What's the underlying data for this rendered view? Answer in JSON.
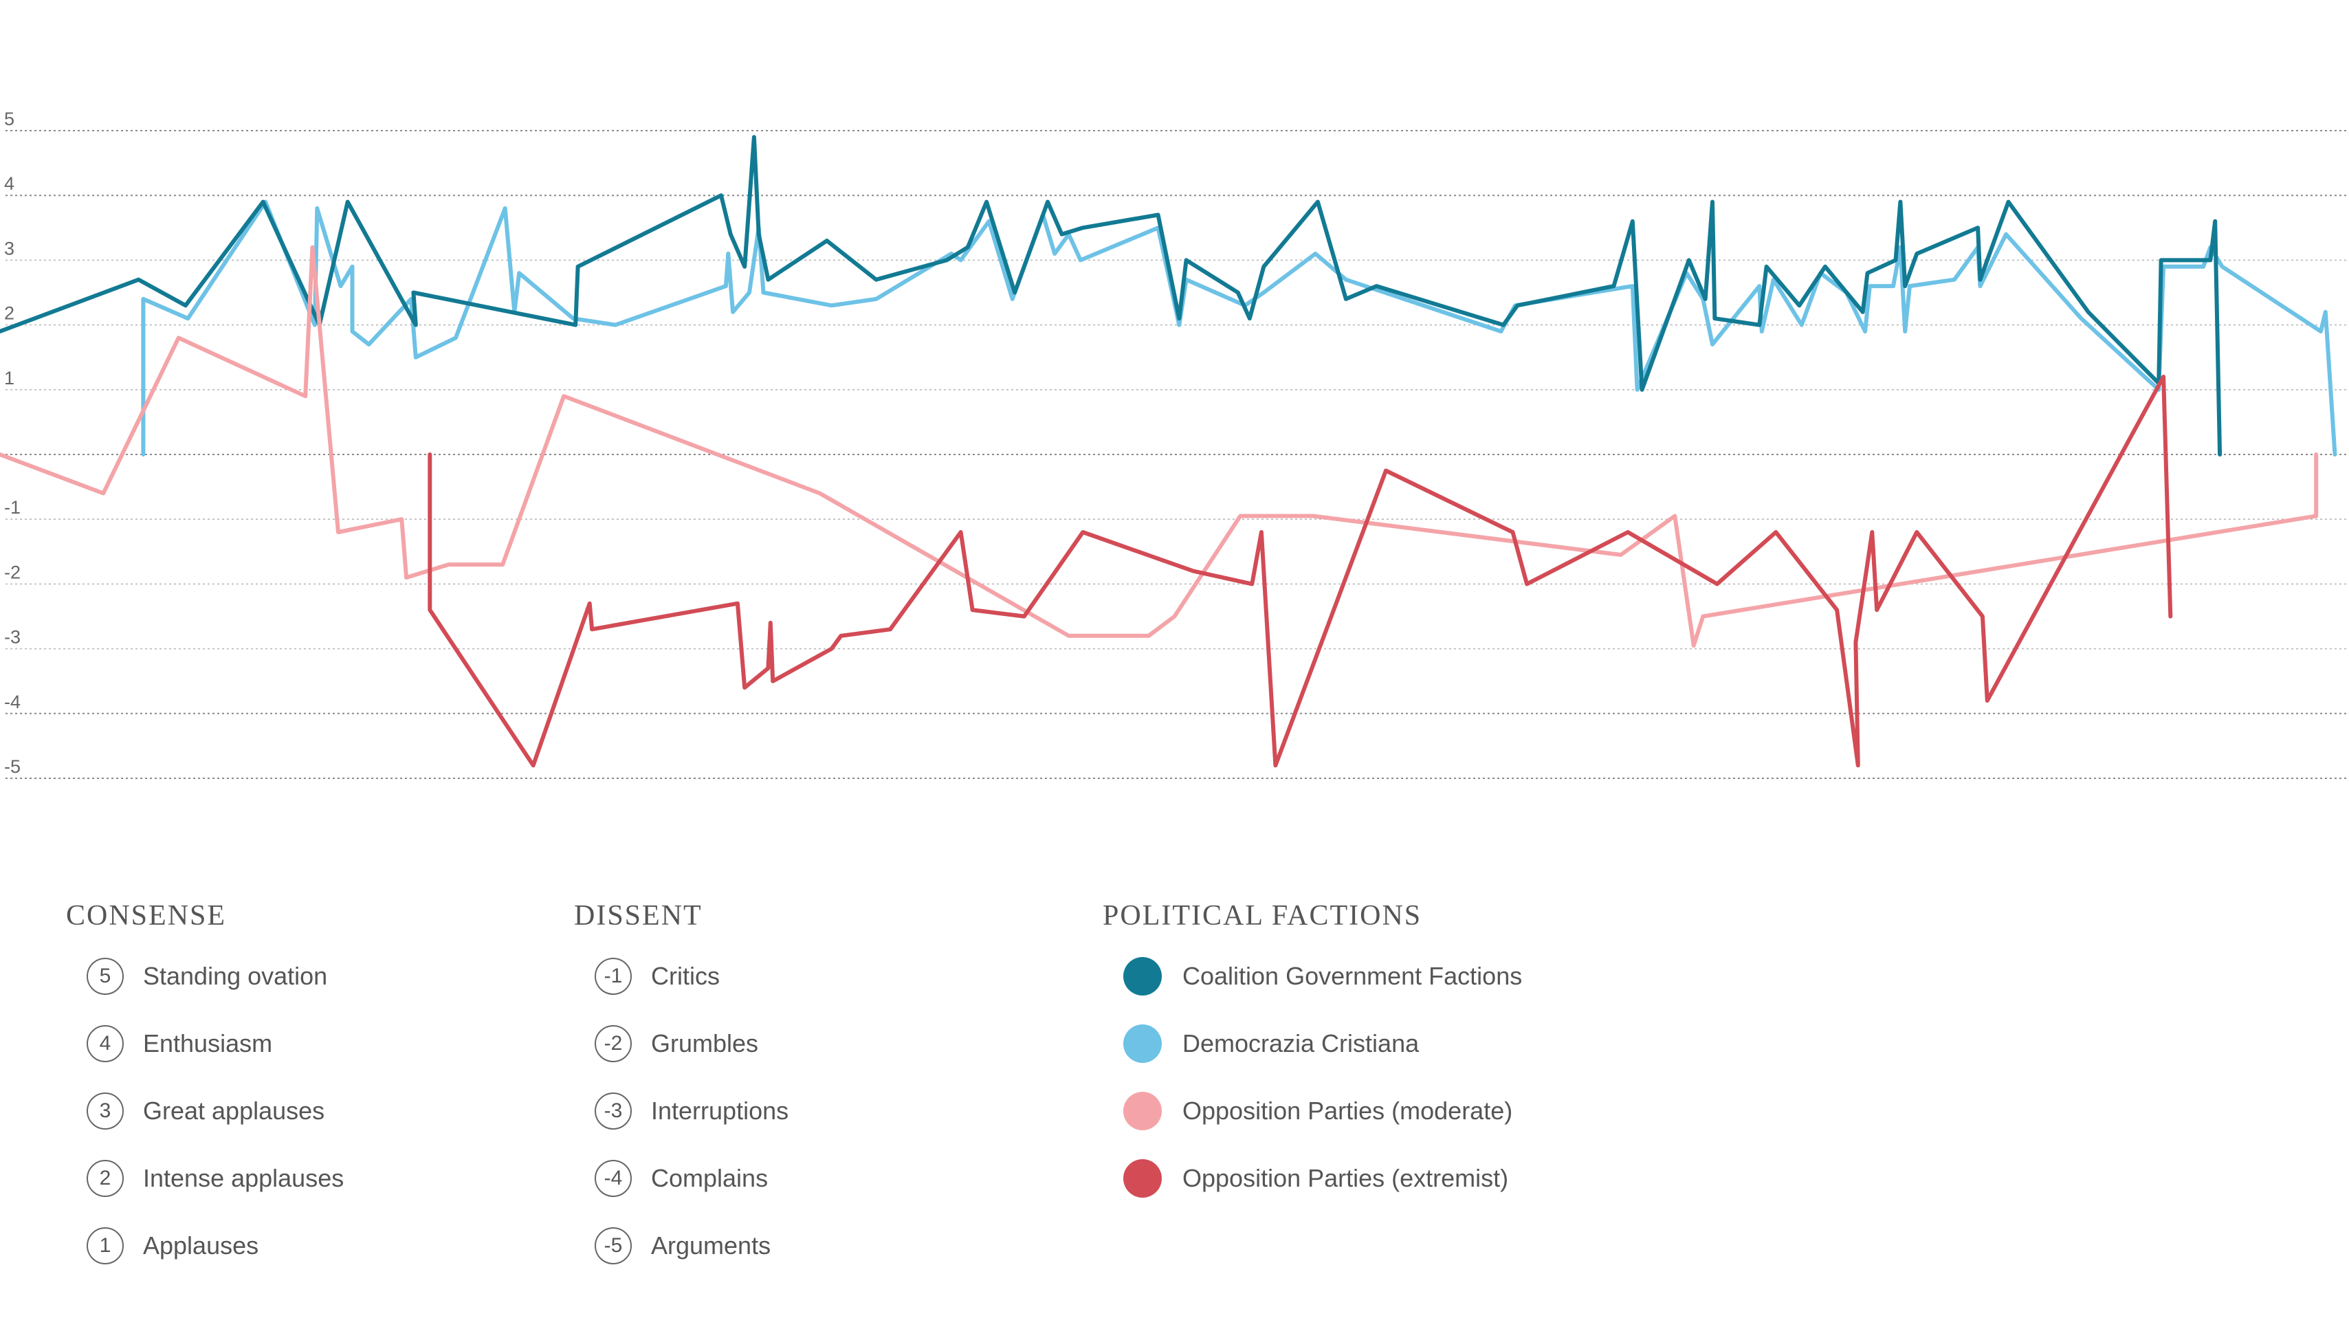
{
  "chart_data": {
    "type": "line",
    "yticks": [
      "5",
      "4",
      "3",
      "2",
      "1",
      "-1",
      "-2",
      "-3",
      "-4",
      "-5"
    ],
    "ylim": [
      -5,
      5
    ],
    "xlim": [
      0,
      100
    ],
    "grid": true,
    "series": [
      {
        "name": "Democrazia Cristiana",
        "color": "#6dc2e6",
        "points": [
          [
            6.1,
            0
          ],
          [
            6.1,
            2.4
          ],
          [
            8,
            2.1
          ],
          [
            11.3,
            3.9
          ],
          [
            13.4,
            2
          ],
          [
            13.5,
            3.8
          ],
          [
            14.5,
            2.6
          ],
          [
            15,
            2.9
          ],
          [
            15,
            1.9
          ],
          [
            15.7,
            1.7
          ],
          [
            17.5,
            2.4
          ],
          [
            17.7,
            1.5
          ],
          [
            19.4,
            1.8
          ],
          [
            21.5,
            3.8
          ],
          [
            21.9,
            2.2
          ],
          [
            22.1,
            2.8
          ],
          [
            24.4,
            2.1
          ],
          [
            26.2,
            2
          ],
          [
            30.9,
            2.6
          ],
          [
            31,
            3.1
          ],
          [
            31.2,
            2.2
          ],
          [
            31.9,
            2.5
          ],
          [
            32.3,
            3.5
          ],
          [
            32.5,
            2.5
          ],
          [
            35.4,
            2.3
          ],
          [
            37.3,
            2.4
          ],
          [
            40.5,
            3.1
          ],
          [
            40.9,
            3
          ],
          [
            42.1,
            3.6
          ],
          [
            43.1,
            2.4
          ],
          [
            44.4,
            3.7
          ],
          [
            44.9,
            3.1
          ],
          [
            45.5,
            3.4
          ],
          [
            46,
            3
          ],
          [
            49.3,
            3.5
          ],
          [
            50.2,
            2
          ],
          [
            50.5,
            2.7
          ],
          [
            53,
            2.3
          ],
          [
            53.8,
            2.5
          ],
          [
            56,
            3.1
          ],
          [
            57.3,
            2.7
          ],
          [
            63.9,
            1.9
          ],
          [
            64.5,
            2.3
          ],
          [
            69.5,
            2.6
          ],
          [
            69.7,
            1
          ],
          [
            71.8,
            2.8
          ],
          [
            72.5,
            2.4
          ],
          [
            72.9,
            1.7
          ],
          [
            74.9,
            2.6
          ],
          [
            75,
            1.9
          ],
          [
            75.5,
            2.7
          ],
          [
            76.7,
            2
          ],
          [
            77.5,
            2.8
          ],
          [
            78.6,
            2.5
          ],
          [
            79.4,
            1.9
          ],
          [
            79.6,
            2.6
          ],
          [
            80.6,
            2.6
          ],
          [
            80.9,
            3.2
          ],
          [
            81.1,
            1.9
          ],
          [
            81.3,
            2.6
          ],
          [
            83.2,
            2.7
          ],
          [
            84.2,
            3.2
          ],
          [
            84.3,
            2.6
          ],
          [
            85.4,
            3.4
          ],
          [
            88.6,
            2.1
          ],
          [
            91.9,
            1
          ],
          [
            92.1,
            2.9
          ],
          [
            93.8,
            2.9
          ],
          [
            94.1,
            3.2
          ],
          [
            94.6,
            2.9
          ],
          [
            98.8,
            1.9
          ],
          [
            99,
            2.2
          ],
          [
            99.4,
            0
          ]
        ]
      },
      {
        "name": "Coalition Government Factions",
        "color": "#127a93",
        "points": [
          [
            0,
            1.9
          ],
          [
            5.9,
            2.7
          ],
          [
            7.9,
            2.3
          ],
          [
            11.2,
            3.9
          ],
          [
            13.6,
            2
          ],
          [
            14.8,
            3.9
          ],
          [
            17.7,
            2
          ],
          [
            17.6,
            2.5
          ],
          [
            24.5,
            2
          ],
          [
            24.6,
            2.9
          ],
          [
            30.7,
            4
          ],
          [
            31.1,
            3.4
          ],
          [
            31.7,
            2.9
          ],
          [
            32.1,
            4.9
          ],
          [
            32.3,
            3.4
          ],
          [
            32.7,
            2.7
          ],
          [
            35.2,
            3.3
          ],
          [
            37.3,
            2.7
          ],
          [
            40.3,
            3
          ],
          [
            41.2,
            3.2
          ],
          [
            42,
            3.9
          ],
          [
            43.2,
            2.5
          ],
          [
            44.6,
            3.9
          ],
          [
            45.2,
            3.4
          ],
          [
            46.1,
            3.5
          ],
          [
            49.3,
            3.7
          ],
          [
            50.2,
            2.1
          ],
          [
            50.5,
            3
          ],
          [
            52.7,
            2.5
          ],
          [
            53.2,
            2.1
          ],
          [
            53.8,
            2.9
          ],
          [
            56.1,
            3.9
          ],
          [
            57.3,
            2.4
          ],
          [
            58.6,
            2.6
          ],
          [
            64,
            2
          ],
          [
            64.6,
            2.3
          ],
          [
            68.7,
            2.6
          ],
          [
            69.5,
            3.6
          ],
          [
            69.9,
            1
          ],
          [
            71.9,
            3
          ],
          [
            72.6,
            2.4
          ],
          [
            72.9,
            3.9
          ],
          [
            73,
            2.1
          ],
          [
            74.9,
            2
          ],
          [
            75.2,
            2.9
          ],
          [
            76.6,
            2.3
          ],
          [
            77.7,
            2.9
          ],
          [
            79.3,
            2.2
          ],
          [
            79.5,
            2.8
          ],
          [
            80.7,
            3
          ],
          [
            80.9,
            3.9
          ],
          [
            81.1,
            2.6
          ],
          [
            81.6,
            3.1
          ],
          [
            84.2,
            3.5
          ],
          [
            84.3,
            2.7
          ],
          [
            85.5,
            3.9
          ],
          [
            88.9,
            2.2
          ],
          [
            91.9,
            1.1
          ],
          [
            92,
            3
          ],
          [
            94.1,
            3
          ],
          [
            94.3,
            3.6
          ],
          [
            94.5,
            0
          ]
        ]
      },
      {
        "name": "Opposition Parties (moderate)",
        "color": "#f4a4a8",
        "points": [
          [
            0,
            0
          ],
          [
            4.4,
            -0.6
          ],
          [
            7.6,
            1.8
          ],
          [
            13,
            0.9
          ],
          [
            13.3,
            3.2
          ],
          [
            14.4,
            -1.2
          ],
          [
            17.1,
            -1
          ],
          [
            17.3,
            -1.9
          ],
          [
            19.1,
            -1.7
          ],
          [
            21.4,
            -1.7
          ],
          [
            24,
            0.9
          ],
          [
            34.9,
            -0.6
          ],
          [
            45.5,
            -2.8
          ],
          [
            48.9,
            -2.8
          ],
          [
            50,
            -2.5
          ],
          [
            52.8,
            -0.95
          ],
          [
            55.9,
            -0.95
          ],
          [
            69,
            -1.55
          ],
          [
            71.3,
            -0.95
          ],
          [
            72.1,
            -2.95
          ],
          [
            72.5,
            -2.5
          ],
          [
            98.6,
            -0.95
          ],
          [
            98.6,
            0
          ]
        ]
      },
      {
        "name": "Opposition Parties (extremist)",
        "color": "#d24b55",
        "points": [
          [
            18.3,
            0
          ],
          [
            18.3,
            -2.4
          ],
          [
            22.7,
            -4.8
          ],
          [
            25.1,
            -2.3
          ],
          [
            25.2,
            -2.7
          ],
          [
            31.4,
            -2.3
          ],
          [
            31.7,
            -3.6
          ],
          [
            32.7,
            -3.3
          ],
          [
            32.8,
            -2.6
          ],
          [
            32.9,
            -3.5
          ],
          [
            35.4,
            -3
          ],
          [
            35.8,
            -2.8
          ],
          [
            37.9,
            -2.7
          ],
          [
            40.9,
            -1.2
          ],
          [
            41.4,
            -2.4
          ],
          [
            43.6,
            -2.5
          ],
          [
            46.1,
            -1.2
          ],
          [
            50.8,
            -1.8
          ],
          [
            53.3,
            -2
          ],
          [
            53.7,
            -1.2
          ],
          [
            54.3,
            -4.8
          ],
          [
            59,
            -0.25
          ],
          [
            64.4,
            -1.2
          ],
          [
            65,
            -2
          ],
          [
            69.3,
            -1.2
          ],
          [
            73.1,
            -2
          ],
          [
            75.6,
            -1.2
          ],
          [
            78.2,
            -2.4
          ],
          [
            79.1,
            -4.8
          ],
          [
            79,
            -2.9
          ],
          [
            79.7,
            -1.2
          ],
          [
            79.9,
            -2.4
          ],
          [
            81.6,
            -1.2
          ],
          [
            84.4,
            -2.5
          ],
          [
            84.6,
            -3.8
          ],
          [
            92.1,
            1.2
          ],
          [
            92.4,
            -2.5
          ]
        ]
      }
    ]
  },
  "legend": {
    "consense": {
      "title": "CONSENSE",
      "items": [
        {
          "code": "5",
          "label": "Standing ovation"
        },
        {
          "code": "4",
          "label": "Enthusiasm"
        },
        {
          "code": "3",
          "label": "Great applauses"
        },
        {
          "code": "2",
          "label": "Intense applauses"
        },
        {
          "code": "1",
          "label": "Applauses"
        }
      ]
    },
    "dissent": {
      "title": "DISSENT",
      "items": [
        {
          "code": "-1",
          "label": "Critics"
        },
        {
          "code": "-2",
          "label": "Grumbles"
        },
        {
          "code": "-3",
          "label": "Interruptions"
        },
        {
          "code": "-4",
          "label": "Complains"
        },
        {
          "code": "-5",
          "label": "Arguments"
        }
      ]
    },
    "factions": {
      "title": "POLITICAL FACTIONS",
      "items": [
        {
          "label": "Coalition Government Factions",
          "color": "#127a93"
        },
        {
          "label": "Democrazia Cristiana",
          "color": "#6dc2e6"
        },
        {
          "label": "Opposition Parties (moderate)",
          "color": "#f4a4a8"
        },
        {
          "label": "Opposition Parties (extremist)",
          "color": "#d24b55"
        }
      ]
    }
  }
}
